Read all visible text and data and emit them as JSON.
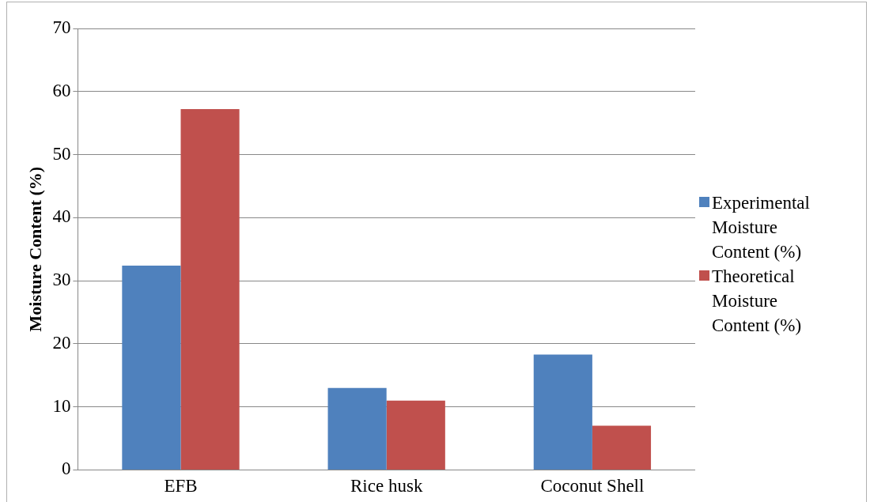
{
  "chart_data": {
    "type": "bar",
    "ylabel": "Moisture Content (%)",
    "categories": [
      "EFB",
      "Rice husk",
      "Coconut Shell"
    ],
    "series": [
      {
        "name": "Experimental Moisture Content (%)",
        "color": "#4f81bd",
        "values": [
          32.4,
          13.0,
          18.3
        ]
      },
      {
        "name": "Theoretical Moisture Content (%)",
        "color": "#c0504d",
        "values": [
          57.2,
          11.0,
          7.0
        ]
      }
    ],
    "ylim": [
      0,
      70
    ],
    "yticks": [
      0,
      10,
      20,
      30,
      40,
      50,
      60,
      70
    ],
    "grid": "y",
    "legend": "right"
  }
}
